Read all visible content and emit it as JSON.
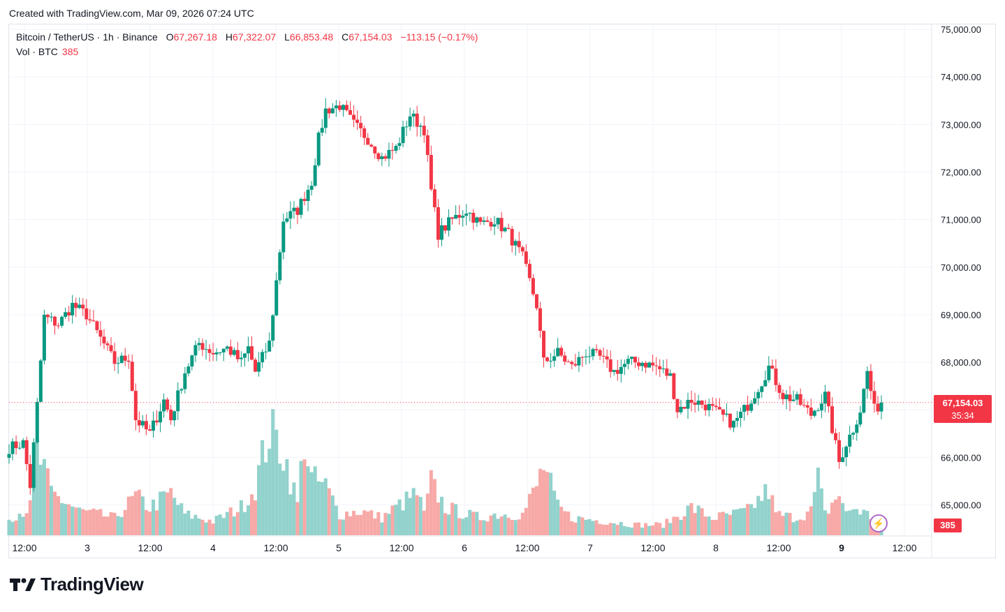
{
  "header": {
    "created_text": "Created with TradingView.com, Mar 09, 2026 07:24 UTC"
  },
  "legend": {
    "symbol": "Bitcoin / TetherUS · 1h · Binance",
    "o_label": "O",
    "o_value": "67,267.18",
    "h_label": "H",
    "h_value": "67,322.07",
    "l_label": "L",
    "l_value": "66,853.48",
    "c_label": "C",
    "c_value": "67,154.03",
    "change": "−113.15 (−0.17%)",
    "vol_label": "Vol · BTC",
    "vol_value": "385"
  },
  "price_tag": {
    "price": "67,154.03",
    "countdown": "35:34"
  },
  "volume_tag": "385",
  "brand": "TradingView",
  "colors": {
    "up": "#089981",
    "down": "#f23645",
    "vol_up": "#92d2cc",
    "vol_down": "#f7a9a7",
    "grid": "#f0f3fa"
  },
  "chart_data": {
    "type": "candlestick",
    "title": "Bitcoin / TetherUS · 1h · Binance",
    "y_axis": {
      "min": 64500,
      "max": 75000,
      "ticks": [
        "75,000.00",
        "74,000.00",
        "73,000.00",
        "72,000.00",
        "71,000.00",
        "70,000.00",
        "69,000.00",
        "68,000.00",
        "67,000.00",
        "66,000.00",
        "65,000.00"
      ]
    },
    "x_axis": {
      "ticks": [
        "12:00",
        "3",
        "12:00",
        "4",
        "12:00",
        "5",
        "12:00",
        "6",
        "12:00",
        "7",
        "12:00",
        "8",
        "12:00",
        "9",
        "12:00"
      ]
    },
    "last_price": 67154.03,
    "anchors": [
      [
        0,
        66200
      ],
      [
        4,
        66300
      ],
      [
        6,
        65400
      ],
      [
        8,
        67100
      ],
      [
        10,
        68950
      ],
      [
        14,
        68800
      ],
      [
        18,
        69200
      ],
      [
        22,
        69000
      ],
      [
        26,
        68500
      ],
      [
        30,
        68000
      ],
      [
        34,
        68100
      ],
      [
        36,
        66800
      ],
      [
        40,
        66500
      ],
      [
        44,
        67200
      ],
      [
        46,
        66800
      ],
      [
        50,
        67800
      ],
      [
        54,
        68400
      ],
      [
        58,
        68200
      ],
      [
        62,
        68300
      ],
      [
        66,
        68000
      ],
      [
        68,
        68300
      ],
      [
        70,
        67800
      ],
      [
        74,
        68400
      ],
      [
        76,
        69700
      ],
      [
        78,
        71000
      ],
      [
        82,
        71200
      ],
      [
        86,
        71800
      ],
      [
        88,
        72700
      ],
      [
        90,
        73300
      ],
      [
        94,
        73400
      ],
      [
        98,
        73000
      ],
      [
        102,
        72700
      ],
      [
        106,
        72300
      ],
      [
        110,
        72500
      ],
      [
        114,
        73200
      ],
      [
        118,
        72900
      ],
      [
        120,
        71600
      ],
      [
        122,
        70700
      ],
      [
        126,
        71000
      ],
      [
        130,
        71200
      ],
      [
        134,
        70900
      ],
      [
        138,
        71000
      ],
      [
        142,
        70700
      ],
      [
        146,
        70200
      ],
      [
        150,
        69200
      ],
      [
        152,
        68000
      ],
      [
        156,
        68200
      ],
      [
        160,
        67900
      ],
      [
        164,
        68200
      ],
      [
        168,
        68100
      ],
      [
        172,
        67800
      ],
      [
        176,
        68000
      ],
      [
        180,
        68000
      ],
      [
        184,
        67900
      ],
      [
        188,
        67700
      ],
      [
        190,
        67000
      ],
      [
        194,
        67200
      ],
      [
        198,
        67100
      ],
      [
        200,
        67000
      ],
      [
        204,
        66800
      ],
      [
        206,
        66700
      ],
      [
        210,
        67100
      ],
      [
        214,
        67600
      ],
      [
        216,
        67900
      ],
      [
        220,
        67300
      ],
      [
        224,
        67200
      ],
      [
        228,
        66900
      ],
      [
        232,
        67300
      ],
      [
        234,
        66600
      ],
      [
        236,
        65900
      ],
      [
        238,
        66300
      ],
      [
        240,
        66600
      ],
      [
        242,
        67000
      ],
      [
        244,
        67800
      ],
      [
        246,
        67000
      ],
      [
        248,
        67150
      ]
    ],
    "volume_anchors": [
      [
        0,
        25
      ],
      [
        6,
        40
      ],
      [
        8,
        120
      ],
      [
        12,
        60
      ],
      [
        20,
        35
      ],
      [
        30,
        25
      ],
      [
        36,
        55
      ],
      [
        40,
        40
      ],
      [
        46,
        60
      ],
      [
        50,
        30
      ],
      [
        58,
        20
      ],
      [
        62,
        30
      ],
      [
        66,
        40
      ],
      [
        70,
        70
      ],
      [
        74,
        150
      ],
      [
        78,
        120
      ],
      [
        82,
        45
      ],
      [
        84,
        140
      ],
      [
        86,
        80
      ],
      [
        90,
        70
      ],
      [
        94,
        30
      ],
      [
        100,
        35
      ],
      [
        106,
        25
      ],
      [
        110,
        40
      ],
      [
        116,
        60
      ],
      [
        118,
        30
      ],
      [
        120,
        75
      ],
      [
        124,
        40
      ],
      [
        130,
        30
      ],
      [
        134,
        25
      ],
      [
        138,
        30
      ],
      [
        146,
        30
      ],
      [
        150,
        70
      ],
      [
        152,
        100
      ],
      [
        156,
        40
      ],
      [
        160,
        25
      ],
      [
        170,
        20
      ],
      [
        178,
        15
      ],
      [
        186,
        15
      ],
      [
        194,
        40
      ],
      [
        200,
        25
      ],
      [
        206,
        30
      ],
      [
        210,
        35
      ],
      [
        216,
        65
      ],
      [
        218,
        30
      ],
      [
        224,
        25
      ],
      [
        228,
        35
      ],
      [
        230,
        80
      ],
      [
        232,
        30
      ],
      [
        236,
        60
      ],
      [
        238,
        30
      ],
      [
        240,
        40
      ],
      [
        244,
        30
      ],
      [
        248,
        15
      ]
    ]
  }
}
